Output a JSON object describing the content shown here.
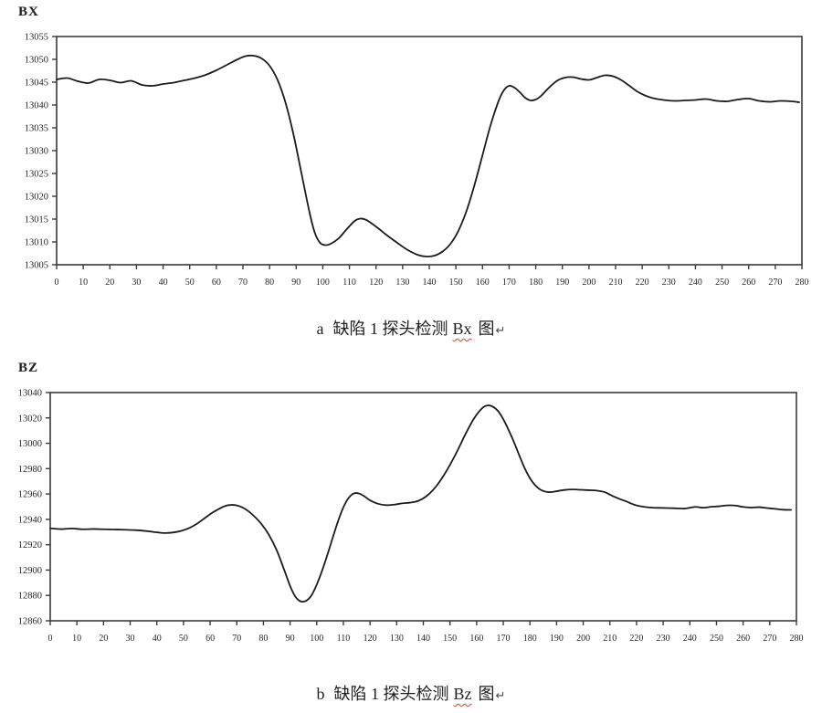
{
  "page": {
    "background": "#ffffff"
  },
  "colors": {
    "line": "#1b1b1b",
    "axis": "#3a3a3a",
    "tick_label": "#26282c",
    "squiggle": "#e03a2f"
  },
  "captions": [
    {
      "index": "a",
      "text": "缺陷 1 探头检测",
      "term": "Bx",
      "suffix": "图",
      "return_mark": "↵"
    },
    {
      "index": "b",
      "text": "缺陷 1 探头检测",
      "term": "Bz",
      "suffix": "图",
      "return_mark": "↵"
    }
  ],
  "chart_data": [
    {
      "id": "bx",
      "type": "line",
      "title": "BX",
      "xlabel": "",
      "ylabel": "",
      "xlim": [
        0,
        280
      ],
      "ylim": [
        13005,
        13055
      ],
      "grid": false,
      "legend": "none",
      "xticks": [
        0,
        10,
        20,
        30,
        40,
        50,
        60,
        70,
        80,
        90,
        100,
        110,
        120,
        130,
        140,
        150,
        160,
        170,
        180,
        190,
        200,
        210,
        220,
        230,
        240,
        250,
        260,
        270,
        280
      ],
      "yticks": [
        13055,
        13050,
        13045,
        13040,
        13035,
        13030,
        13025,
        13020,
        13015,
        13010,
        13005
      ],
      "series": [
        {
          "name": "Bx",
          "points": [
            [
              0,
              13045.6
            ],
            [
              4,
              13045.9
            ],
            [
              8,
              13045.2
            ],
            [
              12,
              13044.8
            ],
            [
              16,
              13045.6
            ],
            [
              20,
              13045.4
            ],
            [
              24,
              13044.9
            ],
            [
              28,
              13045.3
            ],
            [
              32,
              13044.4
            ],
            [
              36,
              13044.2
            ],
            [
              40,
              13044.6
            ],
            [
              44,
              13044.9
            ],
            [
              48,
              13045.4
            ],
            [
              52,
              13045.9
            ],
            [
              56,
              13046.6
            ],
            [
              60,
              13047.6
            ],
            [
              64,
              13048.8
            ],
            [
              68,
              13050.0
            ],
            [
              71,
              13050.7
            ],
            [
              74,
              13050.8
            ],
            [
              77,
              13050.2
            ],
            [
              80,
              13048.6
            ],
            [
              83,
              13045.5
            ],
            [
              86,
              13040.5
            ],
            [
              89,
              13033.5
            ],
            [
              92,
              13025.0
            ],
            [
              95,
              13016.5
            ],
            [
              97,
              13012.0
            ],
            [
              99,
              13009.8
            ],
            [
              101,
              13009.3
            ],
            [
              103,
              13009.6
            ],
            [
              106,
              13010.8
            ],
            [
              109,
              13012.8
            ],
            [
              112,
              13014.6
            ],
            [
              114,
              13015.1
            ],
            [
              116,
              13014.9
            ],
            [
              118,
              13014.2
            ],
            [
              121,
              13012.9
            ],
            [
              124,
              13011.5
            ],
            [
              128,
              13009.8
            ],
            [
              132,
              13008.2
            ],
            [
              136,
              13007.1
            ],
            [
              139,
              13006.8
            ],
            [
              142,
              13007.0
            ],
            [
              145,
              13007.9
            ],
            [
              148,
              13009.6
            ],
            [
              151,
              13012.5
            ],
            [
              154,
              13016.8
            ],
            [
              157,
              13022.5
            ],
            [
              160,
              13029.0
            ],
            [
              163,
              13035.5
            ],
            [
              166,
              13040.8
            ],
            [
              168,
              13043.2
            ],
            [
              170,
              13044.2
            ],
            [
              172,
              13043.8
            ],
            [
              174,
              13042.8
            ],
            [
              176,
              13041.6
            ],
            [
              178,
              13041.0
            ],
            [
              180,
              13041.2
            ],
            [
              182,
              13042.0
            ],
            [
              185,
              13043.8
            ],
            [
              188,
              13045.3
            ],
            [
              191,
              13046.0
            ],
            [
              194,
              13046.1
            ],
            [
              197,
              13045.7
            ],
            [
              200,
              13045.5
            ],
            [
              203,
              13046.0
            ],
            [
              206,
              13046.5
            ],
            [
              209,
              13046.3
            ],
            [
              212,
              13045.5
            ],
            [
              215,
              13044.3
            ],
            [
              218,
              13043.0
            ],
            [
              221,
              13042.1
            ],
            [
              224,
              13041.5
            ],
            [
              228,
              13041.1
            ],
            [
              232,
              13040.9
            ],
            [
              236,
              13041.0
            ],
            [
              240,
              13041.1
            ],
            [
              244,
              13041.3
            ],
            [
              248,
              13040.9
            ],
            [
              252,
              13040.8
            ],
            [
              256,
              13041.2
            ],
            [
              260,
              13041.4
            ],
            [
              264,
              13040.9
            ],
            [
              268,
              13040.7
            ],
            [
              272,
              13040.9
            ],
            [
              276,
              13040.8
            ],
            [
              279,
              13040.6
            ]
          ]
        }
      ]
    },
    {
      "id": "bz",
      "type": "line",
      "title": "BZ",
      "xlabel": "",
      "ylabel": "",
      "xlim": [
        0,
        280
      ],
      "ylim": [
        12860,
        13040
      ],
      "grid": false,
      "legend": "none",
      "xticks": [
        0,
        10,
        20,
        30,
        40,
        50,
        60,
        70,
        80,
        90,
        100,
        110,
        120,
        130,
        140,
        150,
        160,
        170,
        180,
        190,
        200,
        210,
        220,
        230,
        240,
        250,
        260,
        270,
        280
      ],
      "yticks": [
        13040,
        13020,
        13000,
        12980,
        12960,
        12940,
        12920,
        12900,
        12880,
        12860
      ],
      "series": [
        {
          "name": "Bz",
          "points": [
            [
              0,
              12933.0
            ],
            [
              4,
              12932.3
            ],
            [
              8,
              12932.8
            ],
            [
              12,
              12932.2
            ],
            [
              16,
              12932.4
            ],
            [
              20,
              12932.2
            ],
            [
              24,
              12932.0
            ],
            [
              28,
              12931.8
            ],
            [
              32,
              12931.5
            ],
            [
              36,
              12930.8
            ],
            [
              40,
              12929.8
            ],
            [
              43,
              12929.2
            ],
            [
              46,
              12929.6
            ],
            [
              49,
              12930.8
            ],
            [
              52,
              12933.0
            ],
            [
              55,
              12936.5
            ],
            [
              58,
              12941.0
            ],
            [
              61,
              12945.5
            ],
            [
              64,
              12949.0
            ],
            [
              66,
              12950.8
            ],
            [
              68,
              12951.4
            ],
            [
              70,
              12951.0
            ],
            [
              72,
              12949.5
            ],
            [
              74,
              12947.0
            ],
            [
              76,
              12943.5
            ],
            [
              79,
              12937.0
            ],
            [
              82,
              12928.0
            ],
            [
              85,
              12915.5
            ],
            [
              88,
              12899.0
            ],
            [
              90,
              12887.5
            ],
            [
              92,
              12879.0
            ],
            [
              94,
              12875.3
            ],
            [
              96,
              12875.8
            ],
            [
              98,
              12880.0
            ],
            [
              100,
              12888.5
            ],
            [
              102,
              12899.5
            ],
            [
              104,
              12912.0
            ],
            [
              106,
              12925.5
            ],
            [
              108,
              12938.5
            ],
            [
              110,
              12949.5
            ],
            [
              112,
              12957.0
            ],
            [
              114,
              12960.5
            ],
            [
              116,
              12960.3
            ],
            [
              118,
              12958.0
            ],
            [
              120,
              12955.0
            ],
            [
              123,
              12952.3
            ],
            [
              126,
              12951.2
            ],
            [
              129,
              12951.6
            ],
            [
              132,
              12952.6
            ],
            [
              135,
              12953.2
            ],
            [
              138,
              12954.5
            ],
            [
              141,
              12958.0
            ],
            [
              144,
              12964.0
            ],
            [
              147,
              12972.5
            ],
            [
              150,
              12983.0
            ],
            [
              153,
              12995.0
            ],
            [
              156,
              13008.0
            ],
            [
              159,
              13019.5
            ],
            [
              162,
              13027.5
            ],
            [
              164,
              13029.8
            ],
            [
              166,
              13029.0
            ],
            [
              168,
              13025.5
            ],
            [
              170,
              13019.0
            ],
            [
              172,
              13010.5
            ],
            [
              174,
              13001.0
            ],
            [
              176,
              12990.5
            ],
            [
              178,
              12980.5
            ],
            [
              180,
              12972.5
            ],
            [
              182,
              12966.8
            ],
            [
              184,
              12963.3
            ],
            [
              186,
              12961.8
            ],
            [
              188,
              12961.5
            ],
            [
              190,
              12962.2
            ],
            [
              193,
              12963.2
            ],
            [
              196,
              12963.6
            ],
            [
              199,
              12963.3
            ],
            [
              202,
              12963.0
            ],
            [
              205,
              12962.7
            ],
            [
              208,
              12961.5
            ],
            [
              210,
              12959.5
            ],
            [
              212,
              12957.5
            ],
            [
              214,
              12955.8
            ],
            [
              216,
              12954.3
            ],
            [
              218,
              12952.5
            ],
            [
              220,
              12951.0
            ],
            [
              223,
              12949.8
            ],
            [
              226,
              12949.2
            ],
            [
              230,
              12949.0
            ],
            [
              234,
              12948.8
            ],
            [
              238,
              12948.5
            ],
            [
              242,
              12949.8
            ],
            [
              245,
              12949.2
            ],
            [
              248,
              12949.9
            ],
            [
              251,
              12950.3
            ],
            [
              254,
              12951.0
            ],
            [
              257,
              12950.9
            ],
            [
              260,
              12949.8
            ],
            [
              263,
              12949.3
            ],
            [
              266,
              12949.6
            ],
            [
              269,
              12948.9
            ],
            [
              272,
              12948.3
            ],
            [
              275,
              12947.6
            ],
            [
              278,
              12947.5
            ]
          ]
        }
      ]
    }
  ]
}
